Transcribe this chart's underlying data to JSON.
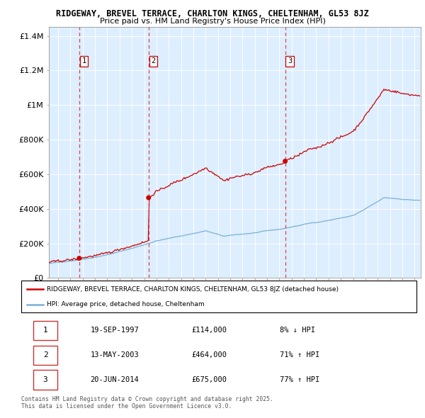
{
  "title1": "RIDGEWAY, BREVEL TERRACE, CHARLTON KINGS, CHELTENHAM, GL53 8JZ",
  "title2": "Price paid vs. HM Land Registry's House Price Index (HPI)",
  "ylabel_ticks": [
    "£0",
    "£200K",
    "£400K",
    "£600K",
    "£800K",
    "£1M",
    "£1.2M",
    "£1.4M"
  ],
  "ytick_vals": [
    0,
    200000,
    400000,
    600000,
    800000,
    1000000,
    1200000,
    1400000
  ],
  "ylim": [
    0,
    1450000
  ],
  "xlim_start": 1995.25,
  "xlim_end": 2025.5,
  "legend_line1": "RIDGEWAY, BREVEL TERRACE, CHARLTON KINGS, CHELTENHAM, GL53 8JZ (detached house)",
  "legend_line2": "HPI: Average price, detached house, Cheltenham",
  "sale1_date": "19-SEP-1997",
  "sale1_price": "£114,000",
  "sale1_hpi": "8% ↓ HPI",
  "sale1_x": 1997.72,
  "sale1_y": 114000,
  "sale2_date": "13-MAY-2003",
  "sale2_price": "£464,000",
  "sale2_hpi": "71% ↑ HPI",
  "sale2_x": 2003.36,
  "sale2_y": 464000,
  "sale3_date": "20-JUN-2014",
  "sale3_price": "£675,000",
  "sale3_hpi": "77% ↑ HPI",
  "sale3_x": 2014.47,
  "sale3_y": 675000,
  "line_color_red": "#cc0000",
  "line_color_blue": "#7ab0d4",
  "vline_color": "#dd4444",
  "bg_color": "#ddeeff",
  "footer": "Contains HM Land Registry data © Crown copyright and database right 2025.\nThis data is licensed under the Open Government Licence v3.0."
}
